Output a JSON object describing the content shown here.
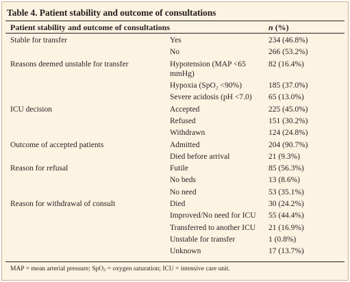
{
  "table": {
    "title": "Table 4. Patient stability and outcome of consultations",
    "header": {
      "label": "Patient stability and outcome of consultations",
      "value_n": "n",
      "value_rest": " (%)"
    },
    "rows": [
      {
        "group": "Stable for transfer",
        "category": "Yes",
        "value": "234 (46.8%)"
      },
      {
        "group": "",
        "category": "No",
        "value": "266 (53.2%)"
      },
      {
        "group": "Reasons deemed unstable for transfer",
        "category": "Hypotension (MAP <65 mmHg)",
        "value": "82 (16.4%)"
      },
      {
        "group": "",
        "category": "Hypoxia (SpO₂ <90%)",
        "value": "185 (37.0%)"
      },
      {
        "group": "",
        "category": "Severe acidosis (pH <7.0)",
        "value": "65 (13.0%)"
      },
      {
        "group": "ICU decision",
        "category": "Accepted",
        "value": "225 (45.0%)"
      },
      {
        "group": "",
        "category": "Refused",
        "value": "151 (30.2%)"
      },
      {
        "group": "",
        "category": "Withdrawn",
        "value": "124 (24.8%)"
      },
      {
        "group": "Outcome of accepted patients",
        "category": "Admitted",
        "value": "204 (90.7%)"
      },
      {
        "group": "",
        "category": "Died before arrival",
        "value": "21 (9.3%)"
      },
      {
        "group": "Reason for refusal",
        "category": "Futile",
        "value": "85 (56.3%)"
      },
      {
        "group": "",
        "category": "No beds",
        "value": "13 (8.6%)"
      },
      {
        "group": "",
        "category": "No need",
        "value": "53 (35.1%)"
      },
      {
        "group": "Reason for withdrawal of consult",
        "category": "Died",
        "value": "30 (24.2%)"
      },
      {
        "group": "",
        "category": "Improved/No need for ICU",
        "value": "55 (44.4%)"
      },
      {
        "group": "",
        "category": "Transferred to another ICU",
        "value": "21 (16.9%)"
      },
      {
        "group": "",
        "category": "Unstable for transfer",
        "value": "1 (0.8%)"
      },
      {
        "group": "",
        "category": "Unknown",
        "value": "17 (13.7%)"
      }
    ],
    "footnote": {
      "part1": "MAP = mean arterial pressure; SpO",
      "sub": "2",
      "part2": " = oxygen saturation; ICU = intensive care unit."
    }
  }
}
